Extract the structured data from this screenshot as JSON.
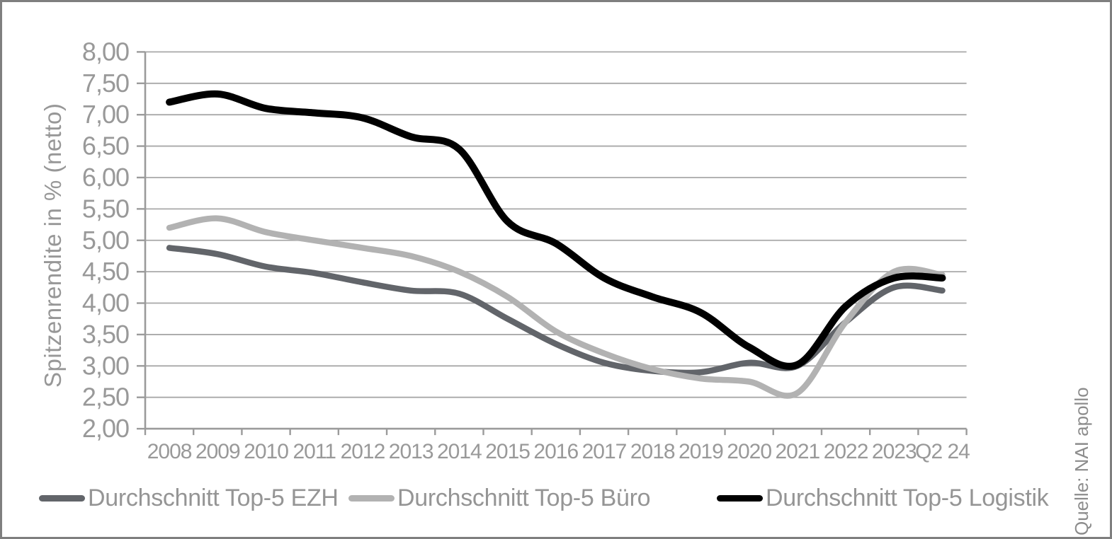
{
  "source_note": "Quelle: NAI apollo",
  "chart_data": {
    "type": "line",
    "title": "",
    "ylabel": "Spitzenrendite in % (netto)",
    "xlabel": "",
    "x_labels": [
      "2008",
      "2009",
      "2010",
      "2011",
      "2012",
      "2013",
      "2014",
      "2015",
      "2016",
      "2017",
      "2018",
      "2019",
      "2020",
      "2021",
      "2022",
      "2023",
      "Q2 24"
    ],
    "ylim": [
      2.0,
      8.0
    ],
    "ytick_step": 0.5,
    "ytick_labels": [
      "8,00",
      "7,50",
      "7,00",
      "6,50",
      "6,00",
      "5,50",
      "5,00",
      "4,50",
      "4,00",
      "3,50",
      "3,00",
      "2,50",
      "2,00"
    ],
    "grid": true,
    "legend_position": "bottom",
    "series": [
      {
        "name": "Durchschnitt Top-5 EZH",
        "color": "#62656a",
        "values": [
          4.88,
          4.78,
          4.58,
          4.48,
          4.33,
          4.2,
          4.15,
          3.75,
          3.35,
          3.05,
          2.92,
          2.9,
          3.05,
          3.0,
          3.7,
          4.25,
          4.2
        ]
      },
      {
        "name": "Durchschnitt Top-5 Büro",
        "color": "#b2b2b2",
        "values": [
          5.2,
          5.35,
          5.13,
          5.0,
          4.88,
          4.75,
          4.5,
          4.1,
          3.55,
          3.2,
          2.95,
          2.8,
          2.75,
          2.57,
          3.7,
          4.5,
          4.45
        ]
      },
      {
        "name": "Durchschnitt Top-5 Logistik",
        "color": "#000000",
        "values": [
          7.2,
          7.33,
          7.1,
          7.03,
          6.95,
          6.65,
          6.45,
          5.3,
          4.95,
          4.4,
          4.1,
          3.85,
          3.3,
          3.02,
          3.95,
          4.4,
          4.4
        ]
      }
    ],
    "axis_color": "#9b9b9b",
    "grid_color": "#a8a8a8",
    "label_color": "#999999"
  }
}
